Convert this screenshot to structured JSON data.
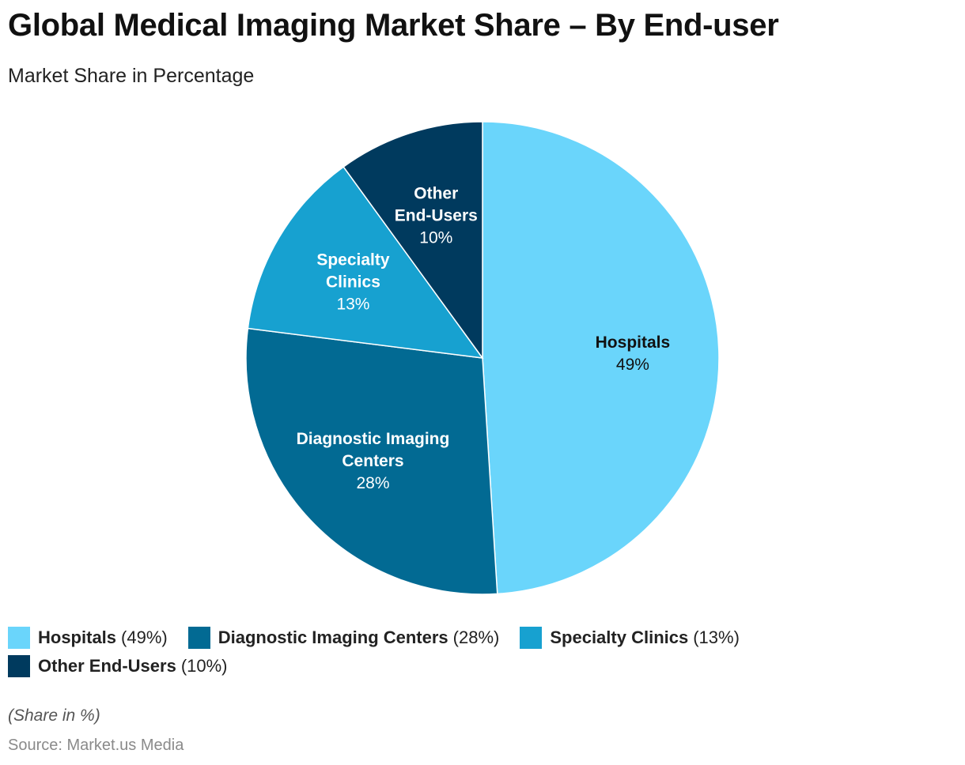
{
  "header": {
    "title": "Global Medical Imaging Market Share – By End-user",
    "subtitle": "Market Share in Percentage"
  },
  "chart_data": {
    "type": "pie",
    "title": "Global Medical Imaging Market Share – By End-user",
    "subtitle": "Market Share in Percentage",
    "unit": "%",
    "start_angle": "12 o'clock",
    "direction": "clockwise",
    "legend_position": "bottom",
    "slices": [
      {
        "label_lines": [
          "Hospitals"
        ],
        "legend_label": "Hospitals",
        "value": 49,
        "value_text": "49%",
        "legend_value": "(49%)",
        "color": "#6AD5FB",
        "label_color": "#111111"
      },
      {
        "label_lines": [
          "Diagnostic Imaging",
          "Centers"
        ],
        "legend_label": "Diagnostic Imaging Centers",
        "value": 28,
        "value_text": "28%",
        "legend_value": "(28%)",
        "color": "#026A93",
        "label_color": "#ffffff"
      },
      {
        "label_lines": [
          "Specialty",
          "Clinics"
        ],
        "legend_label": "Specialty Clinics",
        "value": 13,
        "value_text": "13%",
        "legend_value": "(13%)",
        "color": "#17A1D0",
        "label_color": "#ffffff"
      },
      {
        "label_lines": [
          "Other",
          "End-Users"
        ],
        "legend_label": "Other End-Users",
        "value": 10,
        "value_text": "10%",
        "legend_value": "(10%)",
        "color": "#003A5E",
        "label_color": "#ffffff"
      }
    ]
  },
  "footer": {
    "note": "(Share in %)",
    "source": "Source: Market.us Media"
  }
}
